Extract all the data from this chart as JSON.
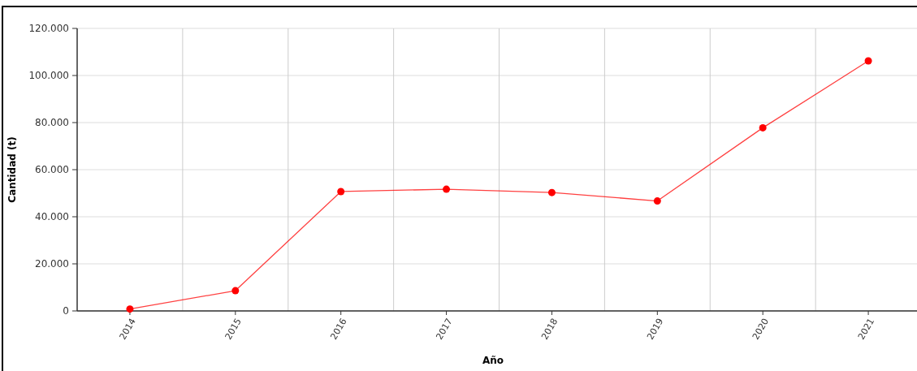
{
  "chart_data": {
    "type": "line",
    "xlabel": "Año",
    "ylabel": "Cantidad (t)",
    "categories": [
      "2014",
      "2015",
      "2016",
      "2017",
      "2018",
      "2019",
      "2020",
      "2021"
    ],
    "series": [
      {
        "color": "#ff0000",
        "values": [
          800,
          8600,
          50700,
          51700,
          50300,
          46700,
          77800,
          106200
        ]
      }
    ],
    "ylim": [
      0,
      120000
    ],
    "yticks": [
      0,
      {
        "value": 20000,
        "label": "20.000"
      },
      {
        "value": 40000,
        "label": "40.000"
      },
      {
        "value": 60000,
        "label": "60.000"
      },
      {
        "value": 80000,
        "label": "80.000"
      },
      {
        "value": 100000,
        "label": "100.000"
      },
      {
        "value": 120000,
        "label": "120.000"
      }
    ],
    "grid": true,
    "marker": "circle",
    "line_style": "solid"
  }
}
